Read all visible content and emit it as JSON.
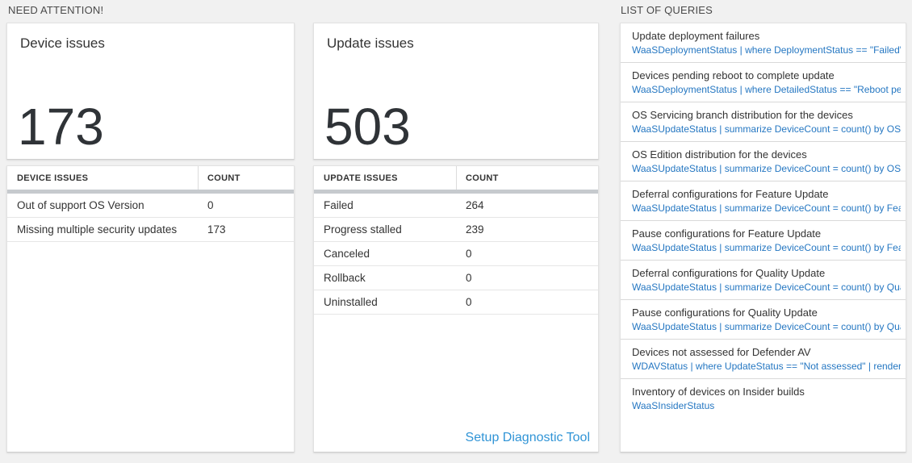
{
  "sections": {
    "need_attention": {
      "title": "NEED ATTENTION!"
    },
    "list_of_queries": {
      "title": "LIST OF QUERIES"
    }
  },
  "device_card": {
    "title": "Device issues",
    "count": "173"
  },
  "device_table": {
    "headers": [
      "DEVICE ISSUES",
      "COUNT"
    ],
    "rows": [
      {
        "label": "Out of support OS Version",
        "count": "0"
      },
      {
        "label": "Missing multiple security updates",
        "count": "173"
      }
    ]
  },
  "update_card": {
    "title": "Update issues",
    "count": "503"
  },
  "update_table": {
    "headers": [
      "UPDATE ISSUES",
      "COUNT"
    ],
    "rows": [
      {
        "label": "Failed",
        "count": "264"
      },
      {
        "label": "Progress stalled",
        "count": "239"
      },
      {
        "label": "Canceled",
        "count": "0"
      },
      {
        "label": "Rollback",
        "count": "0"
      },
      {
        "label": "Uninstalled",
        "count": "0"
      }
    ],
    "footer_link": "Setup Diagnostic Tool"
  },
  "queries": {
    "items": [
      {
        "title": "Update deployment failures",
        "query": "WaaSDeploymentStatus | where DeploymentStatus == \"Failed\" |..."
      },
      {
        "title": "Devices pending reboot to complete update",
        "query": "WaaSDeploymentStatus | where DetailedStatus == \"Reboot pend..."
      },
      {
        "title": "OS Servicing branch distribution for the devices",
        "query": "WaaSUpdateStatus | summarize DeviceCount = count() by OSSer..."
      },
      {
        "title": "OS Edition distribution for the devices",
        "query": "WaaSUpdateStatus | summarize DeviceCount = count() by OSEdit..."
      },
      {
        "title": "Deferral configurations for Feature Update",
        "query": "WaaSUpdateStatus | summarize DeviceCount = count() by Featur..."
      },
      {
        "title": "Pause configurations for Feature Update",
        "query": "WaaSUpdateStatus | summarize DeviceCount = count() by Featur..."
      },
      {
        "title": "Deferral configurations for Quality Update",
        "query": "WaaSUpdateStatus | summarize DeviceCount = count() by Qualit..."
      },
      {
        "title": "Pause configurations for Quality Update",
        "query": "WaaSUpdateStatus | summarize DeviceCount = count() by Qualit..."
      },
      {
        "title": "Devices not assessed for Defender AV",
        "query": "WDAVStatus | where UpdateStatus == \"Not assessed\" | render ta..."
      },
      {
        "title": "Inventory of devices on Insider builds",
        "query": "WaaSInsiderStatus"
      }
    ]
  },
  "colors": {
    "background": "#f1f1f1",
    "query_link_blue": "#2577c2",
    "setup_link_blue": "#3094d6",
    "header_accent_bar": "#c6cace",
    "big_number": "#2f3337"
  }
}
